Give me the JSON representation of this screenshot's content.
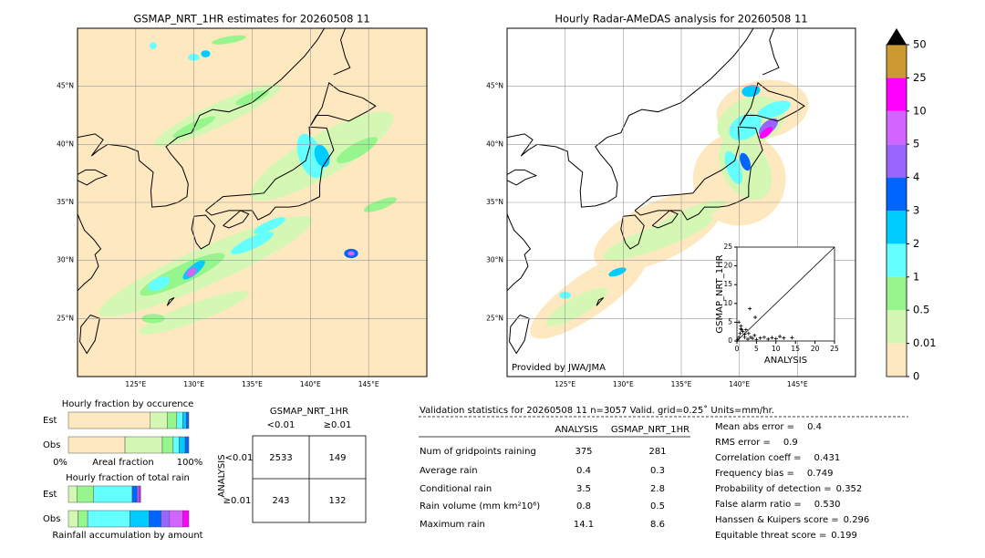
{
  "left_map": {
    "title": "GSMAP_NRT_1HR estimates for 20260508 11",
    "xlim": [
      120,
      150
    ],
    "ylim": [
      20,
      50
    ],
    "xticks": [
      {
        "value": 125,
        "label": "125°E"
      },
      {
        "value": 130,
        "label": "130°E"
      },
      {
        "value": 135,
        "label": "135°E"
      },
      {
        "value": 140,
        "label": "140°E"
      },
      {
        "value": 145,
        "label": "145°E"
      }
    ],
    "yticks": [
      {
        "value": 25,
        "label": "25°N"
      },
      {
        "value": 30,
        "label": "30°N"
      },
      {
        "value": 35,
        "label": "35°N"
      },
      {
        "value": 40,
        "label": "40°N"
      },
      {
        "value": 45,
        "label": "45°N"
      }
    ]
  },
  "right_map": {
    "title": "Hourly Radar-AMeDAS analysis for 20260508 11",
    "credit": "Provided by JWA/JMA",
    "xlim": [
      120,
      150
    ],
    "ylim": [
      20,
      50
    ],
    "xticks": [
      {
        "value": 125,
        "label": "125°E"
      },
      {
        "value": 130,
        "label": "130°E"
      },
      {
        "value": 135,
        "label": "135°E"
      },
      {
        "value": 140,
        "label": "140°E"
      },
      {
        "value": 145,
        "label": "145°E"
      }
    ],
    "yticks": [
      {
        "value": 25,
        "label": "25°N"
      },
      {
        "value": 30,
        "label": "30°N"
      },
      {
        "value": 35,
        "label": "35°N"
      },
      {
        "value": 40,
        "label": "40°N"
      },
      {
        "value": 45,
        "label": "45°N"
      }
    ]
  },
  "colorbar": {
    "bounds": [
      0,
      0.01,
      0.5,
      1,
      2,
      3,
      4,
      5,
      10,
      25,
      50
    ],
    "colors": [
      "#fee8c0",
      "#d4f7b4",
      "#96f58c",
      "#64ffff",
      "#00ccff",
      "#0064ff",
      "#9a64ff",
      "#d264ff",
      "#ff00ff",
      "#cc9933"
    ],
    "extend_color": "#000000"
  },
  "scatter": {
    "type": "scatter",
    "xlabel": "ANALYSIS",
    "ylabel": "GSMAP_NRT_1HR",
    "xlim": [
      0,
      25
    ],
    "ylim": [
      0,
      25
    ],
    "xticks": [
      0,
      5,
      10,
      15,
      20,
      25
    ],
    "yticks": [
      0,
      5,
      10,
      15,
      20,
      25
    ],
    "x": [
      0.2,
      0.5,
      0.8,
      1,
      1.2,
      1.5,
      2,
      2.3,
      2.8,
      3,
      3.5,
      4,
      4.5,
      5,
      6,
      7,
      8,
      9,
      10,
      11,
      12,
      14.1,
      1,
      0.5,
      2,
      3.3,
      4.7
    ],
    "y": [
      0.3,
      1,
      2,
      4,
      3,
      2.5,
      1,
      3,
      0.5,
      2,
      1,
      0.7,
      1.5,
      0.4,
      0.8,
      1,
      0.5,
      0.9,
      0.6,
      1.2,
      0.8,
      0.9,
      3.2,
      5,
      1.8,
      8.6,
      6.3
    ]
  },
  "occurrence": {
    "title": "Hourly fraction by occurence",
    "rows": [
      "Est",
      "Obs"
    ],
    "xlabels": [
      "0%",
      "Areal fraction",
      "100%"
    ],
    "xlim": [
      0,
      100
    ],
    "est": {
      "values": [
        68,
        14,
        8,
        5,
        3,
        2
      ],
      "colors": [
        "#fee8c0",
        "#d4f7b4",
        "#96f58c",
        "#64ffff",
        "#00ccff",
        "#0064ff"
      ]
    },
    "obs": {
      "values": [
        47,
        31,
        9,
        5,
        5,
        3
      ],
      "colors": [
        "#fee8c0",
        "#d4f7b4",
        "#96f58c",
        "#64ffff",
        "#00ccff",
        "#0064ff"
      ]
    }
  },
  "total_rain": {
    "title": "Hourly fraction of total rain",
    "rows": [
      "Est",
      "Obs"
    ],
    "xlabel": "Rainfall accumulation by amount",
    "xlim": [
      0,
      100
    ],
    "est": {
      "values": [
        7,
        14,
        32,
        4,
        2,
        1
      ],
      "colors": [
        "#d4f7b4",
        "#96f58c",
        "#64ffff",
        "#0064ff",
        "#9a64ff",
        "#ff00ff"
      ]
    },
    "obs": {
      "values": [
        8,
        8,
        35,
        16,
        10,
        7,
        11,
        5
      ],
      "colors": [
        "#d4f7b4",
        "#96f58c",
        "#64ffff",
        "#00ccff",
        "#0064ff",
        "#9a64ff",
        "#d264ff",
        "#ff00ff"
      ]
    }
  },
  "contingency": {
    "title": "GSMAP_NRT_1HR",
    "columns": [
      "<0.01",
      "≥0.01"
    ],
    "row_title": "ANALYSIS",
    "rows": [
      "<0.01",
      "≥0.01"
    ],
    "cells": [
      [
        "2533",
        "149"
      ],
      [
        "243",
        "132"
      ]
    ]
  },
  "validation": {
    "header": "Validation statistics for 20260508 11  n=3057 Valid. grid=0.25˚ Units=mm/hr.",
    "columns": [
      "ANALYSIS",
      "GSMAP_NRT_1HR"
    ],
    "rows": [
      [
        "Num of gridpoints raining",
        "375",
        "281"
      ],
      [
        "Average rain",
        "0.4",
        "0.3"
      ],
      [
        "Conditional rain",
        "3.5",
        "2.8"
      ],
      [
        "Rain volume (mm km²10⁶)",
        "0.8",
        "0.5"
      ],
      [
        "Maximum rain",
        "14.1",
        "8.6"
      ]
    ],
    "scores": [
      [
        "Mean abs error =",
        "0.4"
      ],
      [
        "RMS error =",
        "0.9"
      ],
      [
        "Correlation coeff =",
        "0.431"
      ],
      [
        "Frequency bias =",
        "0.749"
      ],
      [
        "Probability of detection =",
        "0.352"
      ],
      [
        "False alarm ratio =",
        "0.530"
      ],
      [
        "Hanssen & Kuipers score =",
        "0.296"
      ],
      [
        "Equitable threat score =",
        "0.199"
      ]
    ]
  }
}
